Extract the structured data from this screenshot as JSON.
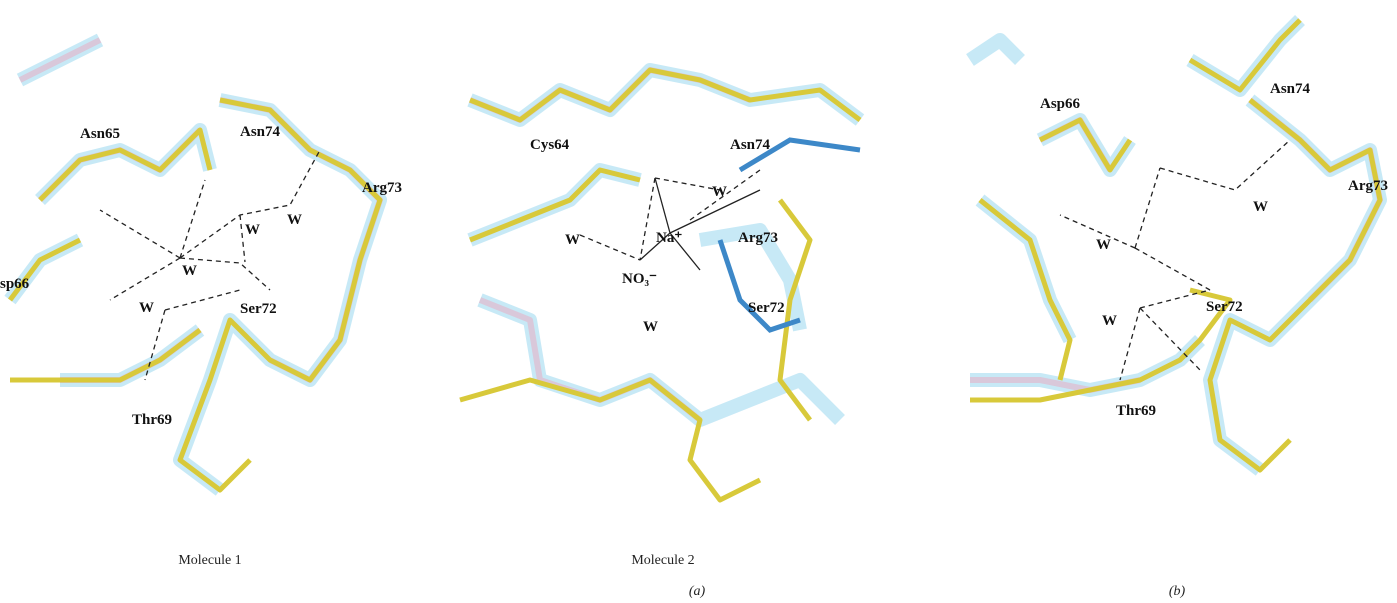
{
  "figure": {
    "panels": [
      {
        "labels": [
          "Asn65",
          "Asn74",
          "Arg73",
          "W",
          "W",
          "W",
          "W",
          "sp66",
          "Ser72",
          "Thr69"
        ]
      },
      {
        "labels": [
          "Cys64",
          "Asn74",
          "W",
          "W",
          "Na⁺",
          "Arg73",
          "NO₃⁻",
          "W",
          "Ser72"
        ]
      },
      {
        "labels": [
          "Asp66",
          "Asn74",
          "W",
          "Arg73",
          "W",
          "Ser72",
          "W",
          "Thr69"
        ]
      }
    ],
    "captions": [
      "Molecule 1",
      "Molecule 2"
    ],
    "parts": [
      "(a)",
      "(b)"
    ]
  }
}
